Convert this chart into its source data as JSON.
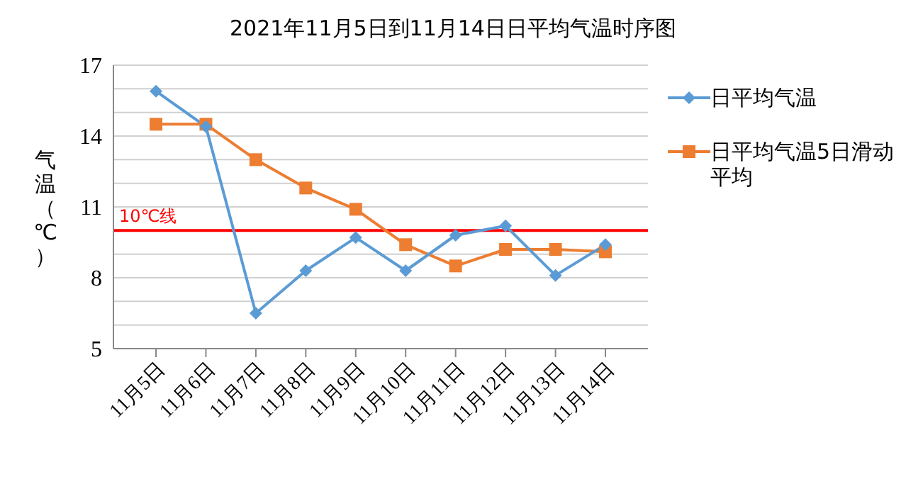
{
  "chart_data": {
    "type": "line",
    "title": "2021年11月5日到11月14日日平均气温时序图",
    "ylabel": "气温（℃）",
    "categories": [
      "11月5日",
      "11月6日",
      "11月7日",
      "11月8日",
      "11月9日",
      "11月10日",
      "11月11日",
      "11月12日",
      "11月13日",
      "11月14日"
    ],
    "series": [
      {
        "name": "日平均气温",
        "color": "#5b9bd5",
        "marker": "diamond",
        "values": [
          15.9,
          14.4,
          6.5,
          8.3,
          9.7,
          8.3,
          9.8,
          10.2,
          8.1,
          9.4
        ]
      },
      {
        "name": "日平均气温5日滑动平均",
        "color": "#ed7d31",
        "marker": "square",
        "values": [
          14.5,
          14.5,
          13.0,
          11.8,
          10.9,
          9.4,
          8.5,
          9.2,
          9.2,
          9.1
        ]
      }
    ],
    "ylim": [
      5,
      17
    ],
    "yticks": [
      5,
      {
        "value": 6,
        "label": null
      },
      {
        "value": 7,
        "label": null
      },
      8,
      {
        "value": 9,
        "label": null
      },
      {
        "value": 10,
        "label": null
      },
      11,
      {
        "value": 12,
        "label": null
      },
      {
        "value": 13,
        "label": null
      },
      14,
      {
        "value": 15,
        "label": null
      },
      {
        "value": 16,
        "label": null
      },
      17
    ],
    "ref_lines": [
      {
        "axis": "y",
        "value": 10,
        "label": "10℃线",
        "color": "#ff0000"
      }
    ],
    "grid": "y",
    "legend": "top right",
    "line_style": "solid"
  }
}
